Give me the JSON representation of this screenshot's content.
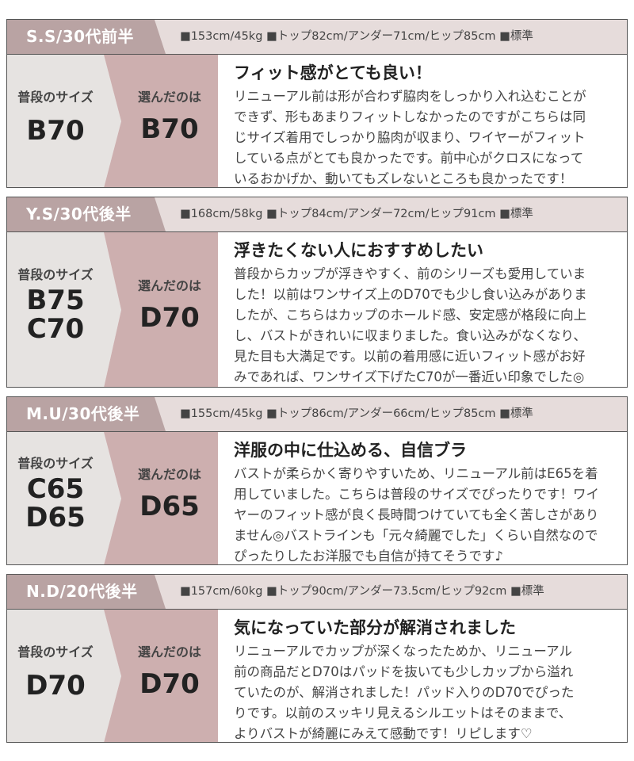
{
  "labels": {
    "usual_size": "普段のサイズ",
    "chosen": "選んだのは"
  },
  "colors": {
    "name_bar": "#b9a3a3",
    "header_bg": "#e6dcdb",
    "usual_col": "#e6e3e1",
    "chosen_col": "#cdafaf"
  },
  "reviews": [
    {
      "name": "S.S/30代前半",
      "stats": "■153cm/45kg ■トップ82cm/アンダー71cm/ヒップ85cm ■標準",
      "usual": [
        "B70"
      ],
      "chosen": "B70",
      "title": "フィット感がとても良い！",
      "lines": [
        "リニューアル前は形が合わず脇肉をしっかり入れ込むことが",
        "できず、形もあまりフィットしなかったのですがこちらは同",
        "じサイズ着用でしっかり脇肉が収まり、ワイヤーがフィット",
        "している点がとても良かったです。前中心がクロスになって",
        "いるおかげか、動いてもズレないところも良かったです！"
      ]
    },
    {
      "name": "Y.S/30代後半",
      "stats": "■168cm/58kg ■トップ84cm/アンダー72cm/ヒップ91cm ■標準",
      "usual": [
        "B75",
        "C70"
      ],
      "chosen": "D70",
      "title": "浮きたくない人におすすめしたい",
      "lines": [
        "普段からカップが浮きやすく、前のシリーズも愛用していま",
        "した！以前はワンサイズ上のD70でも少し食い込みがありま",
        "したが、こちらはカップのホールド感、安定感が格段に向上",
        "し、バストがきれいに収まりました。食い込みがなくなり、",
        "見た目も大満足です。以前の着用感に近いフィット感がお好",
        "みであれば、ワンサイズ下げたC70が一番近い印象でした◎"
      ]
    },
    {
      "name": "M.U/30代後半",
      "stats": "■155cm/45kg ■トップ86cm/アンダー66cm/ヒップ85cm ■標準",
      "usual": [
        "C65",
        "D65"
      ],
      "chosen": "D65",
      "title": "洋服の中に仕込める、自信ブラ",
      "lines": [
        "バストが柔らかく寄りやすいため、リニューアル前はE65を着",
        "用していました。こちらは普段のサイズでぴったりです！ワイ",
        "ヤーのフィット感が良く長時間つけていても全く苦しさがあり",
        "ません◎バストラインも「元々綺麗でした」くらい自然なので",
        "ぴったりしたお洋服でも自信が持てそうです♪"
      ]
    },
    {
      "name": "N.D/20代後半",
      "stats": "■157cm/60kg ■トップ90cm/アンダー73.5cm/ヒップ92cm ■標準",
      "usual": [
        "D70"
      ],
      "chosen": "D70",
      "title": "気になっていた部分が解消されました",
      "lines": [
        "リニューアルでカップが深くなったためか、リニューアル",
        "前の商品だとD70はパッドを抜いても少しカップから溢れ",
        "ていたのが、解消されました！パッド入りのD70でぴった",
        "りです。以前のスッキリ見えるシルエットはそのままで、",
        "よりバストが綺麗にみえて感動です！リピします♡"
      ]
    }
  ]
}
